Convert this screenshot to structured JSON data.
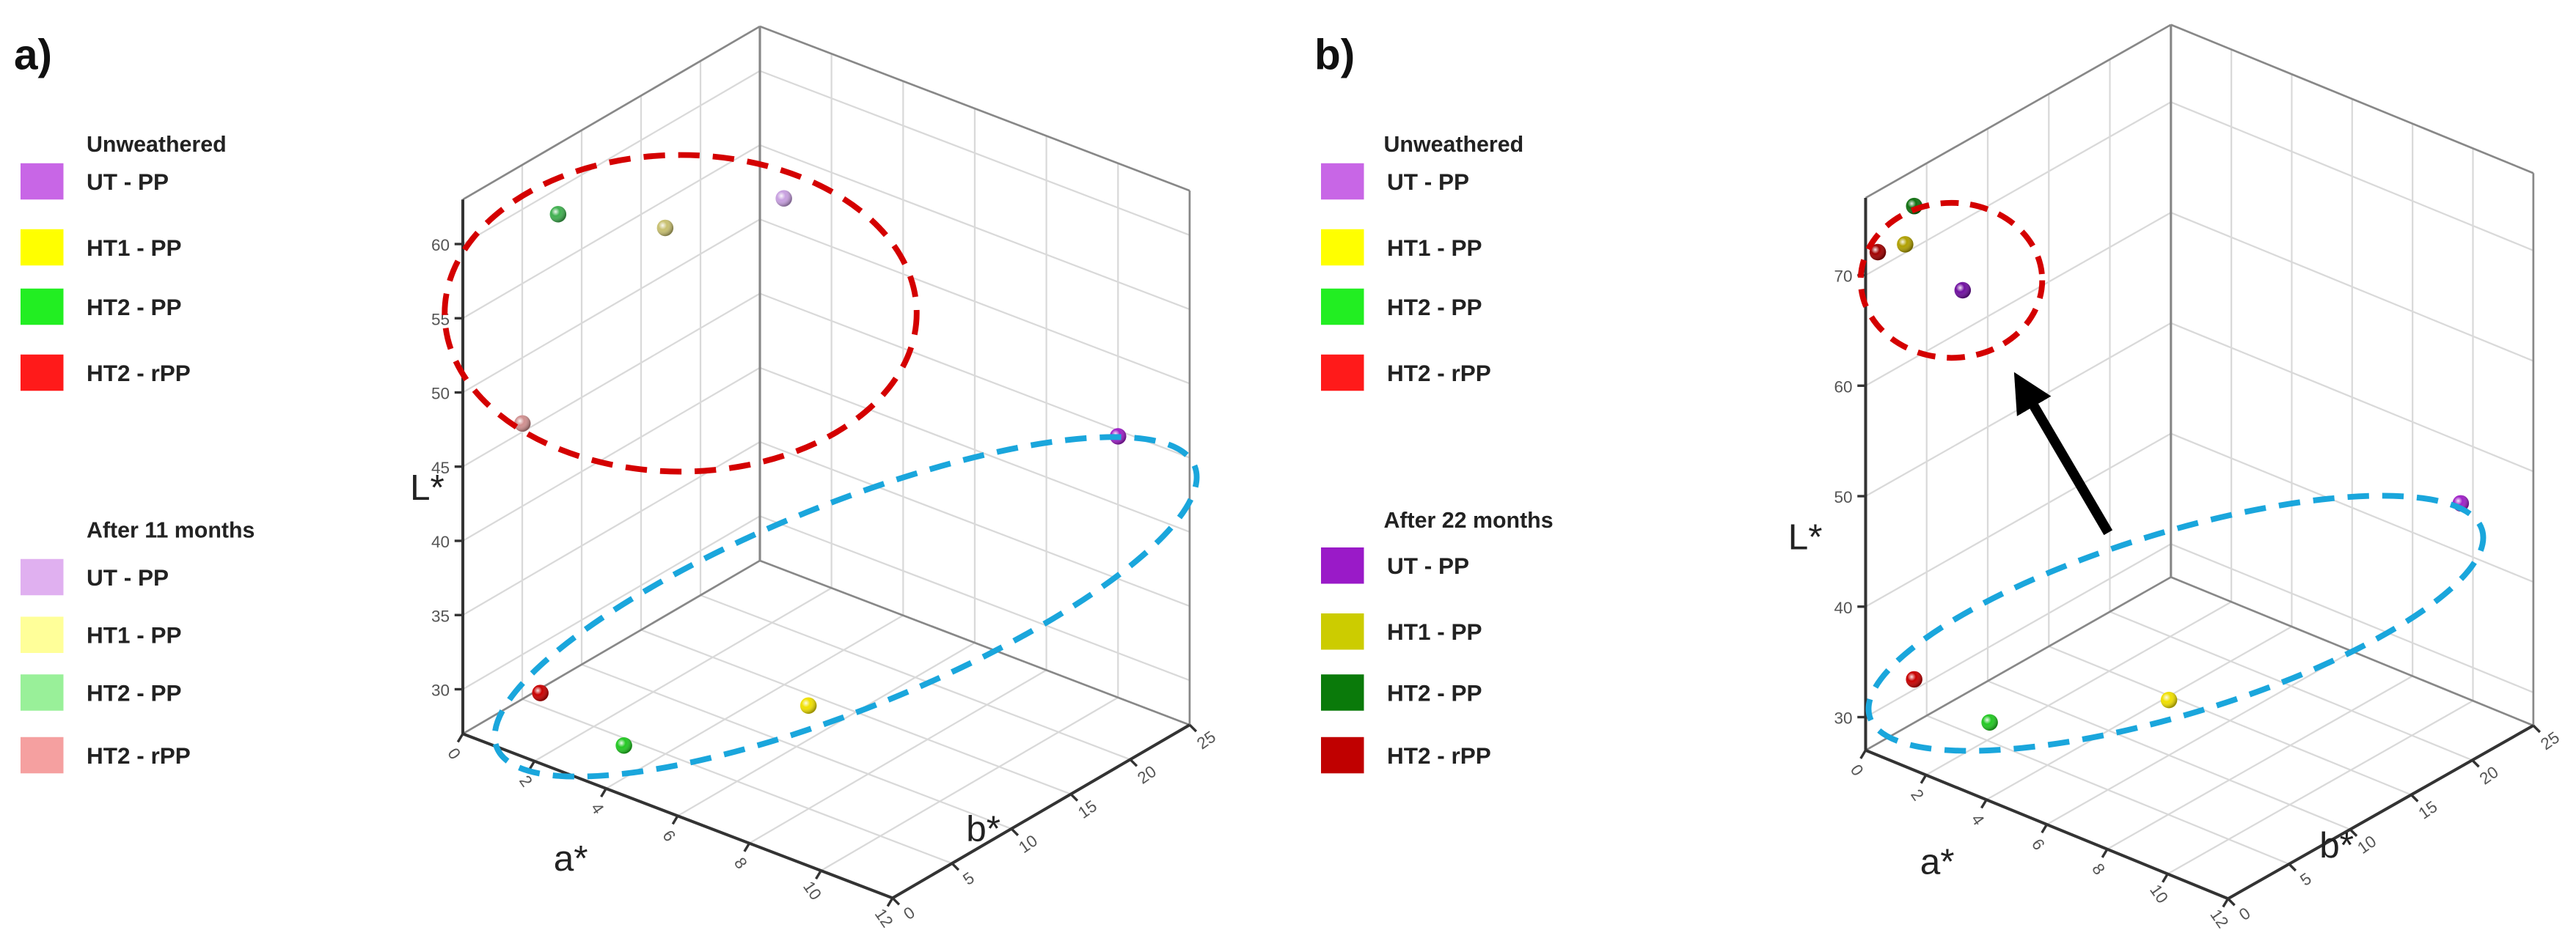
{
  "chart_data": [
    {
      "type": "scatter",
      "panel_label": "a)",
      "title": "",
      "xlabel": "a*",
      "ylabel": "b*",
      "zlabel": "L*",
      "xlim": [
        0,
        12
      ],
      "ylim": [
        0,
        25
      ],
      "zlim": [
        27,
        63
      ],
      "x_ticks": [
        0,
        2,
        4,
        6,
        8,
        10,
        12
      ],
      "y_ticks": [
        0,
        5,
        10,
        15,
        20,
        25
      ],
      "z_ticks": [
        30,
        35,
        40,
        45,
        50,
        55,
        60
      ],
      "grid": true,
      "legend_groups": [
        {
          "title": "Unweathered",
          "items": [
            {
              "label": "UT - PP",
              "color": "#c866e6"
            },
            {
              "label": "HT1 - PP",
              "color": "#ffff00"
            },
            {
              "label": "HT2 - PP",
              "color": "#22ee22"
            },
            {
              "label": "HT2 - rPP",
              "color": "#ff1a1a"
            }
          ]
        },
        {
          "title": "After 11 months",
          "items": [
            {
              "label": "UT - PP",
              "color": "#e0b0f0"
            },
            {
              "label": "HT1 - PP",
              "color": "#ffff99"
            },
            {
              "label": "HT2 - PP",
              "color": "#99f099"
            },
            {
              "label": "HT2 - rPP",
              "color": "#f5a0a0"
            }
          ]
        }
      ],
      "points": [
        {
          "series": "Unweathered UT - PP",
          "a": 10,
          "b": 25,
          "L": 44.6,
          "color": "#a020c8"
        },
        {
          "series": "Unweathered HT1 - PP",
          "a": 6,
          "b": 11,
          "L": 29.3,
          "color": "#f0e000"
        },
        {
          "series": "Unweathered HT2 - PP",
          "a": 4,
          "b": 1.5,
          "L": 29.2,
          "color": "#22c822"
        },
        {
          "series": "Unweathered HT2 - rPP",
          "a": 1.5,
          "b": 2,
          "L": 30.2,
          "color": "#c80000"
        },
        {
          "series": "After 11 months UT - PP",
          "a": 1,
          "b": 24,
          "L": 52.8,
          "color": "#c8a0e0"
        },
        {
          "series": "After 11 months HT1 - PP",
          "a": 2,
          "b": 11,
          "L": 57.8,
          "color": "#c8c070"
        },
        {
          "series": "After 11 months HT2 - PP",
          "a": 1,
          "b": 5,
          "L": 60.6,
          "color": "#40b050"
        },
        {
          "series": "After 11 months HT2 - rPP",
          "a": 1,
          "b": 2,
          "L": 47.9,
          "color": "#d09090"
        }
      ],
      "annotations": [
        "red dashed ellipse: weathered group",
        "blue dashed ellipse: unweathered group"
      ]
    },
    {
      "type": "scatter",
      "panel_label": "b)",
      "title": "",
      "xlabel": "a*",
      "ylabel": "b*",
      "zlabel": "L*",
      "xlim": [
        0,
        12
      ],
      "ylim": [
        0,
        25
      ],
      "zlim": [
        27,
        77
      ],
      "x_ticks": [
        0,
        2,
        4,
        6,
        8,
        10,
        12
      ],
      "y_ticks": [
        0,
        5,
        10,
        15,
        20,
        25
      ],
      "z_ticks": [
        30,
        40,
        50,
        60,
        70
      ],
      "grid": true,
      "legend_groups": [
        {
          "title": "Unweathered",
          "items": [
            {
              "label": "UT - PP",
              "color": "#c866e6"
            },
            {
              "label": "HT1 - PP",
              "color": "#ffff00"
            },
            {
              "label": "HT2 - PP",
              "color": "#22ee22"
            },
            {
              "label": "HT2 - rPP",
              "color": "#ff1a1a"
            }
          ]
        },
        {
          "title": "After 22 months",
          "items": [
            {
              "label": "UT - PP",
              "color": "#9a1ac8"
            },
            {
              "label": "HT1 - PP",
              "color": "#cccc00"
            },
            {
              "label": "HT2 - PP",
              "color": "#0a7a0a"
            },
            {
              "label": "HT2 - rPP",
              "color": "#c00000"
            }
          ]
        }
      ],
      "points": [
        {
          "series": "Unweathered UT - PP",
          "a": 10,
          "b": 24,
          "L": 45.5,
          "color": "#a020c8"
        },
        {
          "series": "Unweathered HT1 - PP",
          "a": 6,
          "b": 10,
          "L": 32,
          "color": "#f0e000"
        },
        {
          "series": "Unweathered HT2 - PP",
          "a": 3.5,
          "b": 1.5,
          "L": 32.5,
          "color": "#22c822"
        },
        {
          "series": "Unweathered HT2 - rPP",
          "a": 1,
          "b": 1.5,
          "L": 33.6,
          "color": "#c80000"
        },
        {
          "series": "After 22 months UT - PP",
          "a": 2,
          "b": 3,
          "L": 69,
          "color": "#7010a0"
        },
        {
          "series": "After 22 months HT1 - PP",
          "a": 0.5,
          "b": 2,
          "L": 72.1,
          "color": "#b0a000"
        },
        {
          "series": "After 22 months HT2 - PP",
          "a": 0.8,
          "b": 2,
          "L": 75.9,
          "color": "#107010"
        },
        {
          "series": "After 22 months HT2 - rPP",
          "a": 0.2,
          "b": 0.5,
          "L": 72,
          "color": "#a00000"
        }
      ],
      "annotations": [
        "red dashed circle: weathered group",
        "blue dashed ellipse: unweathered group",
        "arrow from unweathered to weathered"
      ]
    }
  ]
}
